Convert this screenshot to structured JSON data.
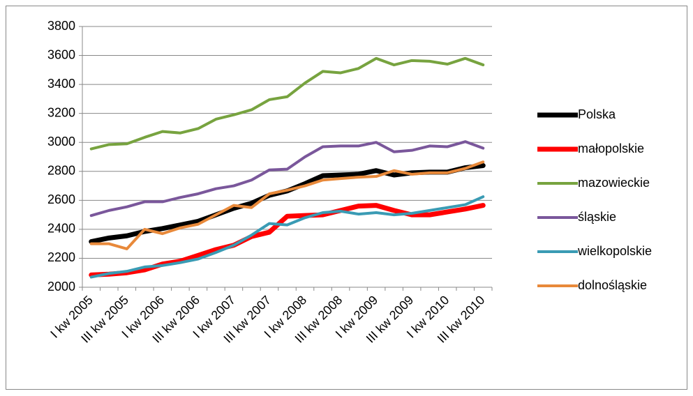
{
  "chart_data": {
    "type": "line",
    "categories": [
      "I kw 2005",
      null,
      "III kw 2005",
      null,
      "I kw 2006",
      null,
      "III kw 2006",
      null,
      "I kw 2007",
      null,
      "III kw 2007",
      null,
      "I kw 2008",
      null,
      "III kw 2008",
      null,
      "I kw 2009",
      null,
      "III kw 2009",
      null,
      "I kw 2010",
      null,
      "III kw 2010"
    ],
    "series": [
      {
        "name": "Polska",
        "color": "#000000",
        "values": [
          2315,
          2340,
          2355,
          2385,
          2405,
          2430,
          2455,
          2500,
          2545,
          2580,
          2635,
          2665,
          2715,
          2770,
          2775,
          2780,
          2805,
          2775,
          2790,
          2795,
          2795,
          2825,
          2840
        ]
      },
      {
        "name": "małopolskie",
        "color": "#ff0000",
        "values": [
          2085,
          2090,
          2100,
          2120,
          2160,
          2180,
          2220,
          2260,
          2290,
          2350,
          2380,
          2490,
          2495,
          2500,
          2530,
          2560,
          2565,
          2530,
          2500,
          2500,
          2520,
          2540,
          2565
        ]
      },
      {
        "name": "mazowieckie",
        "color": "#77a33f",
        "values": [
          2955,
          2985,
          2990,
          3035,
          3075,
          3065,
          3095,
          3160,
          3190,
          3225,
          3295,
          3315,
          3410,
          3490,
          3480,
          3510,
          3580,
          3535,
          3565,
          3560,
          3540,
          3580,
          3535
        ]
      },
      {
        "name": "śląskie",
        "color": "#7a579b",
        "values": [
          2495,
          2530,
          2555,
          2590,
          2590,
          2620,
          2645,
          2680,
          2700,
          2740,
          2810,
          2815,
          2900,
          2970,
          2975,
          2975,
          3000,
          2935,
          2945,
          2975,
          2970,
          3005,
          2960
        ]
      },
      {
        "name": "wielkopolskie",
        "color": "#3a9bb4",
        "values": [
          2070,
          2095,
          2110,
          2140,
          2150,
          2170,
          2195,
          2240,
          2290,
          2360,
          2440,
          2430,
          2480,
          2515,
          2525,
          2505,
          2515,
          2500,
          2510,
          2530,
          2550,
          2570,
          2625
        ]
      },
      {
        "name": "dolnośląskie",
        "color": "#e8893a",
        "values": [
          2300,
          2300,
          2265,
          2400,
          2370,
          2410,
          2435,
          2500,
          2565,
          2550,
          2645,
          2670,
          2700,
          2740,
          2750,
          2760,
          2765,
          2805,
          2780,
          2790,
          2790,
          2820,
          2865
        ]
      }
    ],
    "ylim": [
      2000,
      3800
    ],
    "yticks": [
      2000,
      2200,
      2400,
      2600,
      2800,
      3000,
      3200,
      3400,
      3600,
      3800
    ],
    "grid": true,
    "legend": "right"
  }
}
